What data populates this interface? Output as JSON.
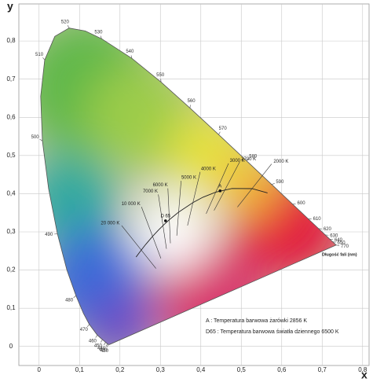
{
  "chart_data": {
    "type": "chromaticity",
    "xlabel": "x",
    "ylabel": "y",
    "xlim": [
      -0.05,
      0.816
    ],
    "ylim": [
      -0.05,
      0.897
    ],
    "xticks": [
      0,
      {
        "value": 0.1,
        "label": "0,1"
      },
      {
        "value": 0.2,
        "label": "0,2"
      },
      {
        "value": 0.3,
        "label": "0,3"
      },
      {
        "value": 0.4,
        "label": "0,4"
      },
      {
        "value": 0.5,
        "label": "0,5"
      },
      {
        "value": 0.6,
        "label": "0,6"
      },
      {
        "value": 0.7,
        "label": "0,7"
      },
      {
        "value": 0.8,
        "label": "0,8"
      }
    ],
    "yticks": [
      0,
      {
        "value": 0.1,
        "label": "0,1"
      },
      {
        "value": 0.2,
        "label": "0,2"
      },
      {
        "value": 0.3,
        "label": "0,3"
      },
      {
        "value": 0.4,
        "label": "0,4"
      },
      {
        "value": 0.5,
        "label": "0,5"
      },
      {
        "value": 0.6,
        "label": "0,6"
      },
      {
        "value": 0.7,
        "label": "0,7"
      },
      {
        "value": 0.8,
        "label": "0,8"
      }
    ],
    "grid": true,
    "spectral_locus": {
      "wavelengths": [
        null,
        420,
        430,
        440,
        450,
        460,
        470,
        null,
        480,
        null,
        490,
        null,
        500,
        null,
        510,
        null,
        520,
        null,
        530,
        540,
        550,
        560,
        570,
        580,
        590,
        600,
        610,
        620,
        630,
        640,
        650,
        770
      ],
      "x": [
        0.1741,
        0.1714,
        0.1689,
        0.1644,
        0.1566,
        0.144,
        0.1241,
        0.1096,
        0.0913,
        0.0687,
        0.0454,
        0.0235,
        0.0082,
        0.0039,
        0.0139,
        0.0389,
        0.0743,
        0.1142,
        0.1547,
        0.2296,
        0.3016,
        0.3731,
        0.4441,
        0.5125,
        0.5752,
        0.627,
        0.6658,
        0.6915,
        0.7079,
        0.719,
        0.726,
        0.7347
      ],
      "y": [
        0.005,
        0.0051,
        0.0069,
        0.0109,
        0.0177,
        0.0297,
        0.0578,
        0.0868,
        0.1327,
        0.2007,
        0.295,
        0.4127,
        0.5384,
        0.6548,
        0.7502,
        0.812,
        0.8338,
        0.8262,
        0.8059,
        0.7543,
        0.6923,
        0.6245,
        0.5547,
        0.4866,
        0.4242,
        0.3725,
        0.334,
        0.3083,
        0.292,
        0.2809,
        0.274,
        0.2653
      ]
    },
    "wavelength_axis_label": "Długość fali (nm)",
    "planckian_locus": {
      "x": [
        0.565,
        0.5267,
        0.477,
        0.4369,
        0.4053,
        0.3805,
        0.3451,
        0.3221,
        0.3064,
        0.2952,
        0.2807,
        0.2637,
        0.2527,
        0.2399
      ],
      "y": [
        0.4021,
        0.4133,
        0.4137,
        0.4041,
        0.3907,
        0.3768,
        0.3516,
        0.3318,
        0.3166,
        0.3048,
        0.2883,
        0.2673,
        0.2524,
        0.2342
      ]
    },
    "isotemperature_lines": {
      "labels": [
        "2000 K",
        "2700 K",
        "3000 K",
        "4000 K",
        "5000 K",
        "6000 K",
        "7000 K",
        "10 000 K",
        "20 000 K"
      ],
      "x": [
        0.5267,
        0.4599,
        0.4369,
        0.3805,
        0.3451,
        0.3221,
        0.3064,
        0.2807,
        0.2527
      ],
      "y": [
        0.4133,
        0.4106,
        0.4041,
        0.3768,
        0.3516,
        0.3318,
        0.3166,
        0.2883,
        0.2524
      ]
    },
    "reference_points": {
      "labels": [
        "A",
        "D 65"
      ],
      "x": [
        0.4476,
        0.3127
      ],
      "y": [
        0.4074,
        0.329
      ]
    },
    "notes": [
      "A : Temperatura barwowa żarówki 2856 K",
      "D65 : Temperatura barwowa światła dziennego 6500 K"
    ]
  }
}
